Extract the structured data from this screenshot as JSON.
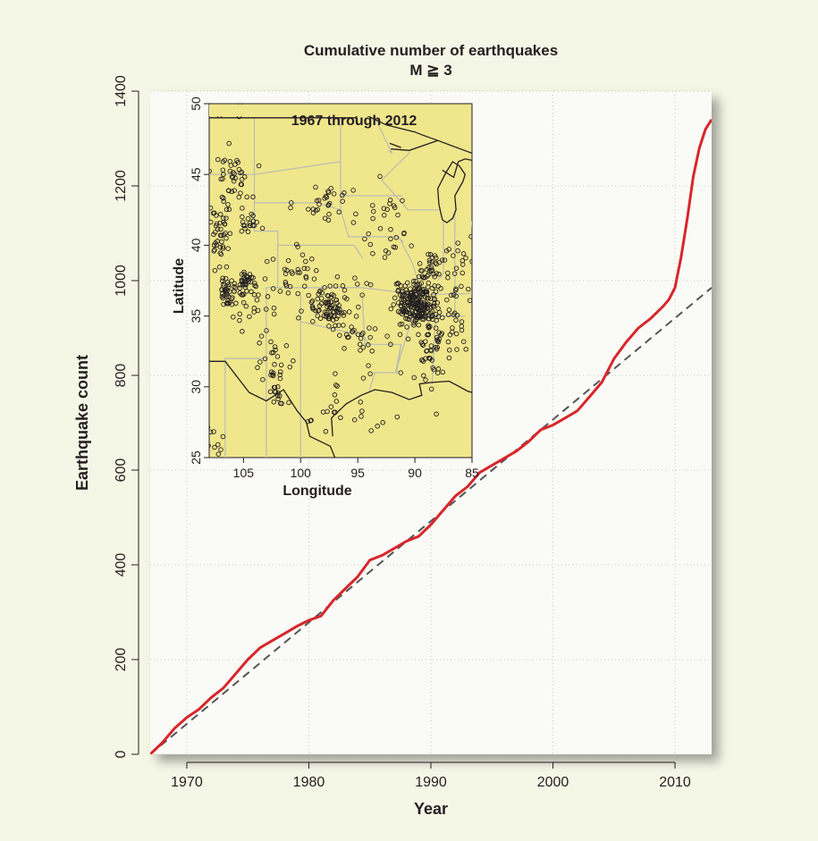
{
  "chart_data": {
    "type": "line",
    "title": "Cumulative number of earthquakes",
    "subtitle": "M ≧ 3",
    "xlabel": "Year",
    "ylabel": "Earthquake count",
    "xlim": [
      1967,
      2013
    ],
    "ylim": [
      0,
      1400
    ],
    "x_ticks": [
      1970,
      1980,
      1990,
      2000,
      2010
    ],
    "y_ticks": [
      0,
      200,
      400,
      600,
      800,
      1000,
      1200,
      1400
    ],
    "grid": true,
    "series": [
      {
        "style": "solid",
        "color": "#d7262b",
        "x": [
          1967,
          1968,
          1969,
          1970,
          1971,
          1972,
          1973,
          1974,
          1975,
          1976,
          1977,
          1978,
          1979,
          1980,
          1981,
          1982,
          1983,
          1984,
          1985,
          1986,
          1987,
          1988,
          1989,
          1990,
          1991,
          1992,
          1993,
          1994,
          1995,
          1996,
          1997,
          1998,
          1999,
          2000,
          2001,
          2002,
          2003,
          2004,
          2005,
          2006,
          2007,
          2008,
          2009,
          2009.5,
          2010,
          2010.5,
          2011,
          2011.5,
          2012,
          2012.5,
          2013
        ],
        "y": [
          0,
          25,
          55,
          78,
          95,
          120,
          140,
          170,
          200,
          225,
          240,
          255,
          270,
          283,
          292,
          325,
          350,
          375,
          410,
          420,
          435,
          450,
          460,
          485,
          515,
          545,
          565,
          595,
          610,
          625,
          640,
          660,
          685,
          695,
          710,
          725,
          755,
          785,
          835,
          870,
          900,
          920,
          945,
          960,
          985,
          1050,
          1130,
          1220,
          1280,
          1320,
          1340
        ]
      },
      {
        "style": "dashed",
        "color": "#555555",
        "x": [
          1967,
          2013
        ],
        "y": [
          0,
          985
        ]
      }
    ],
    "inset": {
      "title": "1967 through 2012",
      "xlabel": "Longitude",
      "ylabel": "Latitude",
      "x_ticks": [
        105,
        100,
        95,
        90,
        85
      ],
      "y_ticks": [
        25,
        30,
        35,
        40,
        45,
        50
      ],
      "xlim": [
        108,
        85
      ],
      "ylim": [
        25,
        50
      ],
      "background": "#f0e68c"
    }
  }
}
